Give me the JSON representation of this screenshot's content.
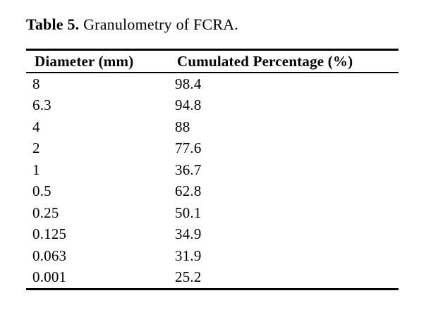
{
  "caption": {
    "label": "Table 5.",
    "text": "Granulometry of FCRA."
  },
  "table": {
    "columns": [
      "Diameter (mm)",
      "Cumulated Percentage (%)"
    ],
    "rows": [
      [
        "8",
        "98.4"
      ],
      [
        "6.3",
        "94.8"
      ],
      [
        "4",
        "88"
      ],
      [
        "2",
        "77.6"
      ],
      [
        "1",
        "36.7"
      ],
      [
        "0.5",
        "62.8"
      ],
      [
        "0.25",
        "50.1"
      ],
      [
        "0.125",
        "34.9"
      ],
      [
        "0.063",
        "31.9"
      ],
      [
        "0.001",
        "25.2"
      ]
    ]
  },
  "chart_data": {
    "type": "table",
    "title": "Table 5. Granulometry of FCRA.",
    "columns": [
      "Diameter (mm)",
      "Cumulated Percentage (%)"
    ],
    "rows": [
      [
        8,
        98.4
      ],
      [
        6.3,
        94.8
      ],
      [
        4,
        88
      ],
      [
        2,
        77.6
      ],
      [
        1,
        36.7
      ],
      [
        0.5,
        62.8
      ],
      [
        0.25,
        50.1
      ],
      [
        0.125,
        34.9
      ],
      [
        0.063,
        31.9
      ],
      [
        0.001,
        25.2
      ]
    ]
  },
  "colors": {
    "background": "#ffffff",
    "text": "#000000",
    "rule": "#000000"
  }
}
